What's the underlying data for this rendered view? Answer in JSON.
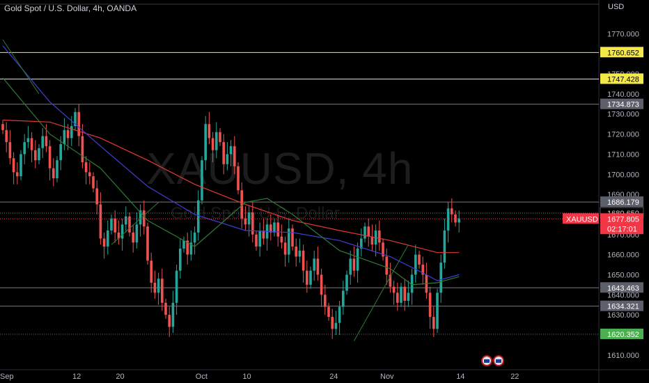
{
  "header": {
    "title": "Gold Spot / U.S. Dollar, 4h, OANDA",
    "currency": "USD"
  },
  "watermark": {
    "symbol_interval": "XAUUSD, 4h",
    "description": "Gold Spot / U.S. Dollar"
  },
  "colors": {
    "background": "#000000",
    "up_candle": "#26a69a",
    "down_candle": "#ef5350",
    "ma_red": "#e53935",
    "ma_blue": "#3f3fd6",
    "ma_green": "#2e7d32",
    "yellow_level": "#f5e94a",
    "gray_level": "#7a7a7a",
    "green_level": "#4caf50",
    "price_tag": "#f23645"
  },
  "chart_data": {
    "type": "candlestick",
    "symbol": "XAUUSD",
    "interval": "4h",
    "ylim": [
      1603,
      1784
    ],
    "y_ticks": [
      1610,
      1620,
      1630,
      1640,
      1650,
      1660,
      1670,
      1680,
      1690,
      1700,
      1710,
      1720,
      1730,
      1740,
      1750,
      1760,
      1770
    ],
    "y_tick_labels": [
      "1610.000",
      "1620.000",
      "1630.000",
      "1640.000",
      "1650.000",
      "1660.000",
      "1670.000",
      "1680.000",
      "1690.000",
      "1700.000",
      "1710.000",
      "1720.000",
      "1730.000",
      "1740.000",
      "1750.000",
      "1760.000",
      "1770.000"
    ],
    "x_labels": [
      "Sep",
      "12",
      "20",
      "Oct",
      "10",
      "24",
      "Nov",
      "14",
      "22"
    ],
    "x_label_bars": [
      0,
      20,
      32,
      54,
      67,
      91,
      105,
      126,
      141
    ],
    "horizontal_levels": [
      {
        "value": 1760.652,
        "label": "1760.652",
        "style": "yellow"
      },
      {
        "value": 1747.428,
        "label": "1747.428",
        "style": "yellow"
      },
      {
        "value": 1734.873,
        "label": "1734.873",
        "style": "gray"
      },
      {
        "value": 1686.179,
        "label": "1686.179",
        "style": "gray"
      },
      {
        "value": 1680.65,
        "label": "1680.650",
        "style": "gray-dotted"
      },
      {
        "value": 1643.463,
        "label": "1643.463",
        "style": "gray"
      },
      {
        "value": 1634.321,
        "label": "1634.321",
        "style": "gray"
      },
      {
        "value": 1620.352,
        "label": "1620.352",
        "style": "green-dotted"
      }
    ],
    "current_price": {
      "symbol": "XAUUSD",
      "price": "1677.805",
      "countdown": "02:17:01",
      "value": 1677.805
    },
    "close_series": [
      1722,
      1716,
      1708,
      1701,
      1699,
      1710,
      1716,
      1718,
      1712,
      1707,
      1713,
      1719,
      1714,
      1703,
      1698,
      1707,
      1715,
      1722,
      1718,
      1724,
      1731,
      1719,
      1706,
      1701,
      1699,
      1693,
      1685,
      1668,
      1664,
      1672,
      1678,
      1671,
      1668,
      1675,
      1679,
      1671,
      1666,
      1675,
      1682,
      1674,
      1657,
      1646,
      1641,
      1648,
      1636,
      1630,
      1624,
      1636,
      1652,
      1663,
      1667,
      1660,
      1666,
      1671,
      1687,
      1707,
      1725,
      1718,
      1712,
      1721,
      1716,
      1705,
      1710,
      1714,
      1704,
      1692,
      1678,
      1675,
      1681,
      1670,
      1664,
      1672,
      1668,
      1675,
      1671,
      1676,
      1669,
      1666,
      1660,
      1673,
      1664,
      1659,
      1662,
      1652,
      1645,
      1652,
      1658,
      1650,
      1640,
      1634,
      1629,
      1623,
      1626,
      1634,
      1642,
      1650,
      1658,
      1652,
      1663,
      1668,
      1674,
      1669,
      1665,
      1672,
      1666,
      1659,
      1650,
      1644,
      1641,
      1636,
      1644,
      1637,
      1641,
      1650,
      1660,
      1655,
      1650,
      1641,
      1629,
      1623,
      1641,
      1656,
      1672,
      1683,
      1680,
      1676,
      1678
    ],
    "ma_red": [
      [
        0,
        1727
      ],
      [
        13,
        1726
      ],
      [
        27,
        1718
      ],
      [
        40,
        1707
      ],
      [
        53,
        1695
      ],
      [
        67,
        1685
      ],
      [
        80,
        1677
      ],
      [
        93,
        1672
      ],
      [
        107,
        1667
      ],
      [
        120,
        1661
      ],
      [
        126,
        1661
      ]
    ],
    "ma_blue": [
      [
        0,
        1764
      ],
      [
        13,
        1736
      ],
      [
        27,
        1714
      ],
      [
        40,
        1694
      ],
      [
        53,
        1680
      ],
      [
        67,
        1672
      ],
      [
        80,
        1671
      ],
      [
        93,
        1667
      ],
      [
        107,
        1659
      ],
      [
        117,
        1650
      ],
      [
        120,
        1647
      ],
      [
        126,
        1650
      ]
    ],
    "ma_green": [
      [
        0,
        1748
      ],
      [
        13,
        1720
      ],
      [
        27,
        1703
      ],
      [
        40,
        1677
      ],
      [
        53,
        1664
      ],
      [
        67,
        1686
      ],
      [
        73,
        1688
      ],
      [
        80,
        1680
      ],
      [
        93,
        1662
      ],
      [
        107,
        1653
      ],
      [
        113,
        1645
      ],
      [
        120,
        1646
      ],
      [
        126,
        1649
      ]
    ]
  }
}
